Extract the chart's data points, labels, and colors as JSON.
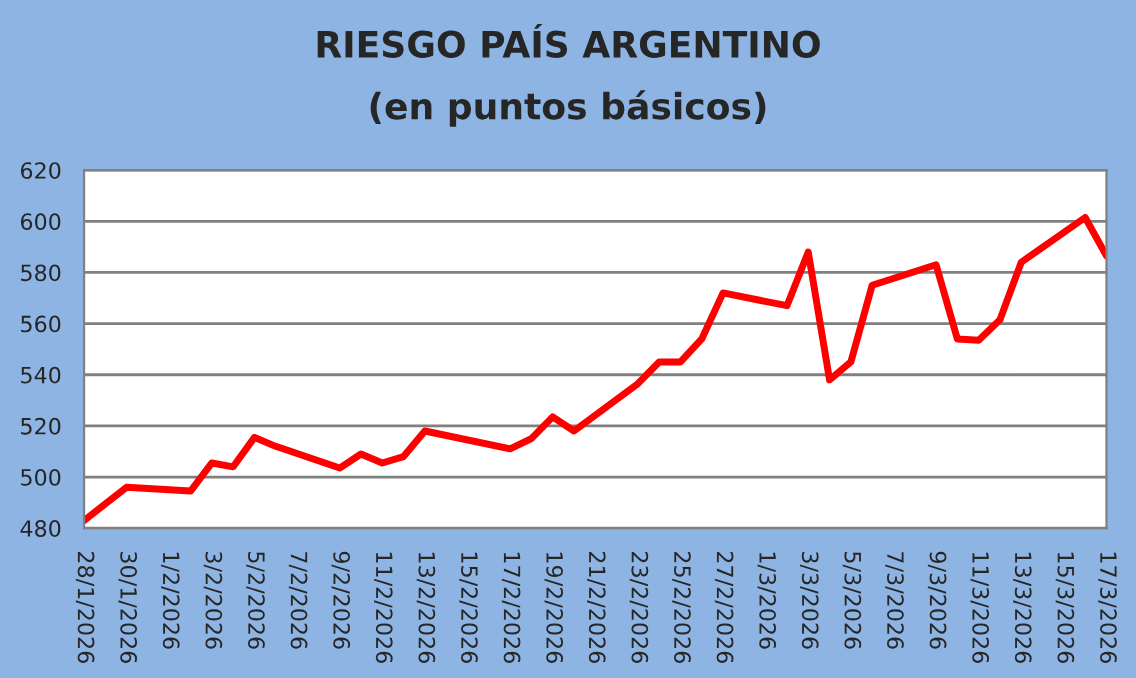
{
  "chart_data": {
    "type": "line",
    "title": "RIESGO PAÍS ARGENTINO",
    "subtitle": "(en puntos básicos)",
    "x": [
      "2026-01-28",
      "2026-01-30",
      "2026-02-02",
      "2026-02-03",
      "2026-02-04",
      "2026-02-05",
      "2026-02-06",
      "2026-02-09",
      "2026-02-10",
      "2026-02-11",
      "2026-02-12",
      "2026-02-13",
      "2026-02-17",
      "2026-02-18",
      "2026-02-19",
      "2026-02-20",
      "2026-02-23",
      "2026-02-24",
      "2026-02-25",
      "2026-02-26",
      "2026-02-27",
      "2026-03-02",
      "2026-03-03",
      "2026-03-04",
      "2026-03-05",
      "2026-03-06",
      "2026-03-09",
      "2026-03-10",
      "2026-03-11",
      "2026-03-12",
      "2026-03-13",
      "2026-03-16",
      "2026-03-17"
    ],
    "series": [
      {
        "color": "#ff0000",
        "values": [
          483,
          496,
          494.5,
          505.5,
          504,
          515.5,
          512,
          503.5,
          509,
          505.5,
          508,
          518,
          511,
          515,
          523.5,
          518,
          536.5,
          545,
          545,
          554,
          572,
          567,
          588,
          538,
          545,
          575,
          583,
          554,
          553.5,
          561.5,
          584,
          601.5,
          586.5
        ]
      }
    ],
    "xlim": [
      "2026-01-28",
      "2026-03-17"
    ],
    "xticks": [
      {
        "value": "2026-01-28",
        "label": "28/1/2026"
      },
      {
        "value": "2026-01-30",
        "label": "30/1/2026"
      },
      {
        "value": "2026-02-01",
        "label": "1/2/2026"
      },
      {
        "value": "2026-02-03",
        "label": "3/2/2026"
      },
      {
        "value": "2026-02-05",
        "label": "5/2/2026"
      },
      {
        "value": "2026-02-07",
        "label": "7/2/2026"
      },
      {
        "value": "2026-02-09",
        "label": "9/2/2026"
      },
      {
        "value": "2026-02-11",
        "label": "11/2/2026"
      },
      {
        "value": "2026-02-13",
        "label": "13/2/2026"
      },
      {
        "value": "2026-02-15",
        "label": "15/2/2026"
      },
      {
        "value": "2026-02-17",
        "label": "17/2/2026"
      },
      {
        "value": "2026-02-19",
        "label": "19/2/2026"
      },
      {
        "value": "2026-02-21",
        "label": "21/2/2026"
      },
      {
        "value": "2026-02-23",
        "label": "23/2/2026"
      },
      {
        "value": "2026-02-25",
        "label": "25/2/2026"
      },
      {
        "value": "2026-02-27",
        "label": "27/2/2026"
      },
      {
        "value": "2026-03-01",
        "label": "1/3/2026"
      },
      {
        "value": "2026-03-03",
        "label": "3/3/2026"
      },
      {
        "value": "2026-03-05",
        "label": "5/3/2026"
      },
      {
        "value": "2026-03-07",
        "label": "7/3/2026"
      },
      {
        "value": "2026-03-09",
        "label": "9/3/2026"
      },
      {
        "value": "2026-03-11",
        "label": "11/3/2026"
      },
      {
        "value": "2026-03-13",
        "label": "13/3/2026"
      },
      {
        "value": "2026-03-15",
        "label": "15/3/2026"
      },
      {
        "value": "2026-03-17",
        "label": "17/3/2026"
      }
    ],
    "ylim": [
      480,
      620
    ],
    "yticks": [
      480,
      500,
      520,
      540,
      560,
      580,
      600,
      620
    ],
    "grid": "y",
    "legend": false,
    "marker": "none",
    "line_style": "solid"
  }
}
